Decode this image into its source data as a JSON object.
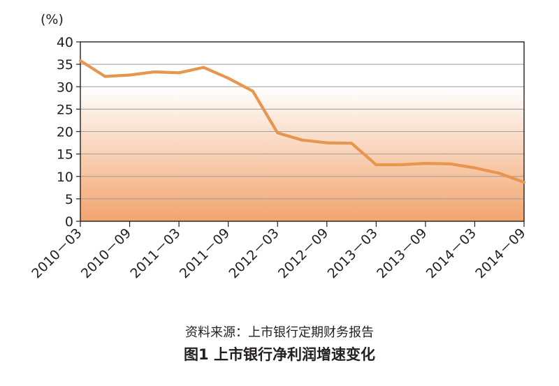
{
  "chart_data": {
    "type": "line",
    "ylabel": "(%)",
    "ylim": [
      0,
      40
    ],
    "yticks": [
      0,
      5,
      10,
      15,
      20,
      25,
      30,
      35,
      40
    ],
    "x_tick_labels": [
      "2010－03",
      "2010－09",
      "2011－03",
      "2011－09",
      "2012－03",
      "2012－09",
      "2013－03",
      "2013－09",
      "2014－03",
      "2014－09"
    ],
    "x": [
      "2010-03",
      "2010-06",
      "2010-09",
      "2010-12",
      "2011-03",
      "2011-06",
      "2011-09",
      "2011-12",
      "2012-03",
      "2012-06",
      "2012-09",
      "2012-12",
      "2013-03",
      "2013-06",
      "2013-09",
      "2013-12",
      "2014-03",
      "2014-06",
      "2014-09"
    ],
    "series": [
      {
        "values": [
          35.8,
          32.3,
          32.6,
          33.3,
          33.1,
          34.3,
          31.9,
          29.0,
          19.7,
          18.1,
          17.5,
          17.4,
          12.6,
          12.6,
          12.9,
          12.8,
          11.9,
          10.7,
          8.7
        ]
      }
    ],
    "grid": true,
    "line_color": "#e8954e",
    "background_gradient": [
      "#ffffff",
      "#f2a46d"
    ]
  },
  "source_note": "资料来源：上市银行定期财务报告",
  "figure_title": "图1  上市银行净利润增速变化"
}
